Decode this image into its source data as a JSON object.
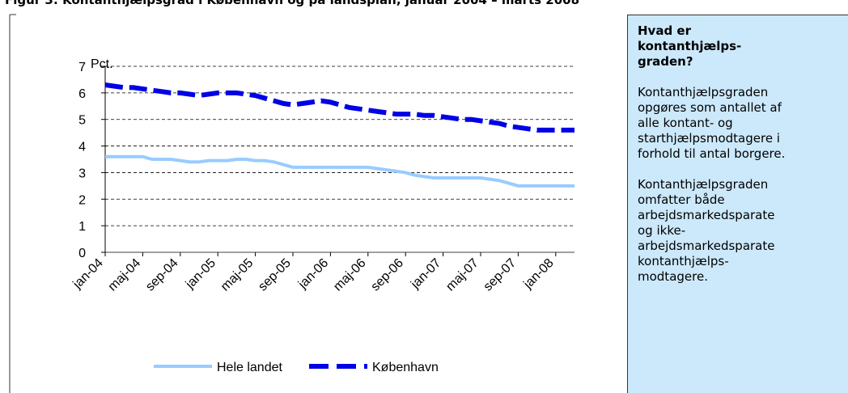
{
  "chart_data": {
    "type": "line",
    "title": "Figur 3: Kontanthjælpsgrad i København og på landsplan, januar 2004 – marts 2008",
    "y_label": "Pct.",
    "categories": [
      "jan-04",
      null,
      null,
      null,
      "maj-04",
      null,
      null,
      null,
      "sep-04",
      null,
      null,
      null,
      "jan-05",
      null,
      null,
      null,
      "maj-05",
      null,
      null,
      null,
      "sep-05",
      null,
      null,
      null,
      "jan-06",
      null,
      null,
      null,
      "maj-06",
      null,
      null,
      null,
      "sep-06",
      null,
      null,
      null,
      "jan-07",
      null,
      null,
      null,
      "maj-07",
      null,
      null,
      null,
      "sep-07",
      null,
      null,
      null,
      "jan-08",
      null,
      null
    ],
    "series": [
      {
        "name": "Hele landet",
        "color": "#99ccff",
        "dashed": false,
        "values": [
          3.6,
          3.6,
          3.6,
          3.6,
          3.6,
          3.5,
          3.5,
          3.5,
          3.45,
          3.4,
          3.4,
          3.45,
          3.45,
          3.45,
          3.5,
          3.5,
          3.45,
          3.45,
          3.4,
          3.3,
          3.2,
          3.2,
          3.2,
          3.2,
          3.2,
          3.2,
          3.2,
          3.2,
          3.2,
          3.15,
          3.1,
          3.05,
          3.0,
          2.9,
          2.85,
          2.8,
          2.8,
          2.8,
          2.8,
          2.8,
          2.8,
          2.75,
          2.7,
          2.6,
          2.5,
          2.5,
          2.5,
          2.5,
          2.5,
          2.5,
          2.5
        ]
      },
      {
        "name": "København",
        "color": "#0000e6",
        "dashed": true,
        "values": [
          6.3,
          6.25,
          6.2,
          6.2,
          6.15,
          6.1,
          6.05,
          6.0,
          6.0,
          5.95,
          5.9,
          5.95,
          6.0,
          6.0,
          6.0,
          5.95,
          5.9,
          5.8,
          5.7,
          5.6,
          5.55,
          5.6,
          5.65,
          5.7,
          5.65,
          5.55,
          5.45,
          5.4,
          5.35,
          5.3,
          5.25,
          5.2,
          5.2,
          5.2,
          5.15,
          5.15,
          5.1,
          5.05,
          5.0,
          5.0,
          4.95,
          4.9,
          4.85,
          4.75,
          4.7,
          4.65,
          4.6,
          4.6,
          4.6,
          4.6,
          4.6
        ]
      }
    ],
    "ylim": [
      0,
      7
    ],
    "yticks": [
      0,
      1,
      2,
      3,
      4,
      5,
      6,
      7
    ],
    "grid": true,
    "legend": "bottom"
  },
  "sidebar": {
    "heading": [
      "Hvad er",
      "kontanthjælps-",
      "graden?"
    ],
    "paragraphs": [
      [
        "Kontanthjælpsgraden",
        "opgøres som antallet af",
        "alle kontant- og",
        "starthjælpsmodtagere i",
        "forhold til antal borgere."
      ],
      [
        "Kontanthjælpsgraden",
        "omfatter både",
        "arbejdsmarkedsparate",
        "og ikke-",
        "arbejdsmarkedsparate",
        "kontanthjælps-",
        "modtagere."
      ]
    ]
  }
}
